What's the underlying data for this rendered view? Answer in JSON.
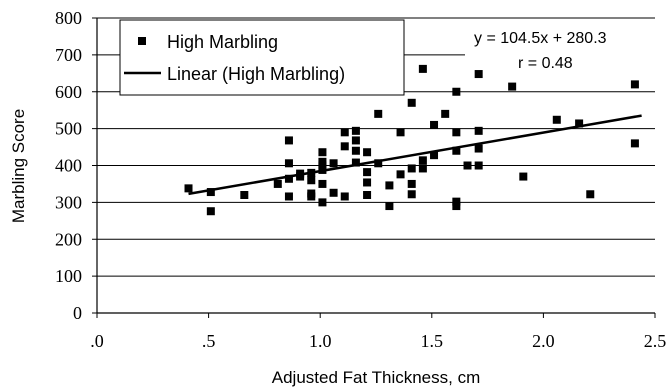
{
  "chart_data": {
    "type": "scatter",
    "xlabel": "Adjusted Fat Thickness, cm",
    "ylabel": "Marbling Score",
    "xlim": [
      0,
      2.5
    ],
    "ylim": [
      0,
      800
    ],
    "x_ticks": [
      ".0",
      ".5",
      "1.0",
      "1.5",
      "2.0",
      "2.5"
    ],
    "y_ticks": [
      "0",
      "100",
      "200",
      "300",
      "400",
      "500",
      "600",
      "700",
      "800"
    ],
    "grid": "horizontal",
    "legend_position": "top-left",
    "series": [
      {
        "name": "High Marbling",
        "marker": "square",
        "color": "#000000",
        "points": [
          [
            0.41,
            338
          ],
          [
            0.51,
            328
          ],
          [
            0.51,
            276
          ],
          [
            0.66,
            320
          ],
          [
            0.81,
            350
          ],
          [
            0.86,
            468
          ],
          [
            0.86,
            406
          ],
          [
            0.86,
            364
          ],
          [
            0.86,
            316
          ],
          [
            0.91,
            378
          ],
          [
            0.91,
            370
          ],
          [
            0.96,
            360
          ],
          [
            0.96,
            380
          ],
          [
            0.96,
            324
          ],
          [
            0.96,
            316
          ],
          [
            1.01,
            436
          ],
          [
            1.01,
            410
          ],
          [
            1.01,
            400
          ],
          [
            1.01,
            388
          ],
          [
            1.01,
            350
          ],
          [
            1.01,
            300
          ],
          [
            1.06,
            406
          ],
          [
            1.06,
            326
          ],
          [
            1.11,
            490
          ],
          [
            1.11,
            452
          ],
          [
            1.11,
            316
          ],
          [
            1.16,
            494
          ],
          [
            1.16,
            468
          ],
          [
            1.16,
            440
          ],
          [
            1.16,
            408
          ],
          [
            1.21,
            436
          ],
          [
            1.21,
            382
          ],
          [
            1.21,
            354
          ],
          [
            1.21,
            320
          ],
          [
            1.26,
            540
          ],
          [
            1.26,
            406
          ],
          [
            1.31,
            346
          ],
          [
            1.31,
            290
          ],
          [
            1.36,
            490
          ],
          [
            1.36,
            376
          ],
          [
            1.41,
            570
          ],
          [
            1.41,
            392
          ],
          [
            1.41,
            350
          ],
          [
            1.41,
            322
          ],
          [
            1.46,
            662
          ],
          [
            1.46,
            414
          ],
          [
            1.46,
            392
          ],
          [
            1.51,
            510
          ],
          [
            1.51,
            428
          ],
          [
            1.56,
            540
          ],
          [
            1.61,
            600
          ],
          [
            1.61,
            490
          ],
          [
            1.61,
            440
          ],
          [
            1.61,
            302
          ],
          [
            1.61,
            290
          ],
          [
            1.66,
            400
          ],
          [
            1.71,
            648
          ],
          [
            1.71,
            494
          ],
          [
            1.71,
            446
          ],
          [
            1.71,
            400
          ],
          [
            1.86,
            614
          ],
          [
            1.91,
            370
          ],
          [
            2.06,
            524
          ],
          [
            2.16,
            514
          ],
          [
            2.21,
            322
          ],
          [
            2.41,
            620
          ],
          [
            2.41,
            460
          ]
        ]
      },
      {
        "name": "Linear (High Marbling)",
        "type": "line",
        "color": "#000000",
        "x": [
          0.41,
          2.44
        ],
        "y": [
          323.1,
          535.3
        ]
      }
    ],
    "annotations": [
      "y = 104.5x + 280.3",
      "r = 0.48"
    ]
  }
}
